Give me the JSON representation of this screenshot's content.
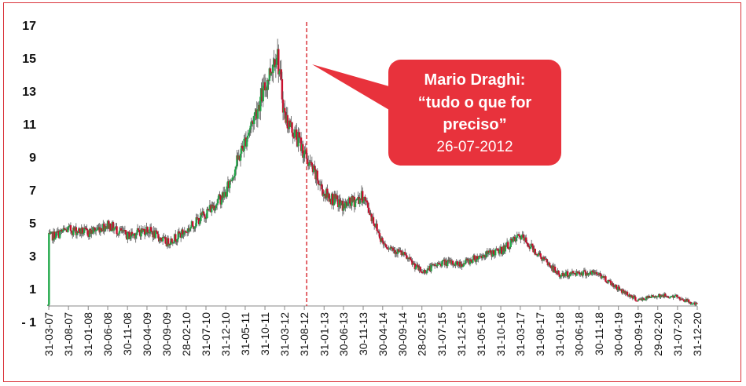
{
  "chart_data": {
    "type": "candlestick",
    "title": "",
    "xlabel": "",
    "ylabel": "",
    "ylim": [
      -1,
      17
    ],
    "y_ticks": [
      "17",
      "15",
      "13",
      "11",
      "9",
      "7",
      "5",
      "3",
      "1",
      "- 1"
    ],
    "x_ticks": [
      "31-03-07",
      "31-08-07",
      "31-01-08",
      "30-06-08",
      "30-11-08",
      "30-04-09",
      "30-09-09",
      "28-02-10",
      "31-07-10",
      "31-12-10",
      "31-05-11",
      "31-10-11",
      "31-03-12",
      "31-08-12",
      "31-01-13",
      "30-06-13",
      "30-11-13",
      "30-04-14",
      "30-09-14",
      "28-02-15",
      "31-07-15",
      "31-12-15",
      "31-05-16",
      "31-10-16",
      "31-03-17",
      "31-08-17",
      "31-01-18",
      "30-06-18",
      "30-11-18",
      "30-04-19",
      "30-09-19",
      "29-02-20",
      "31-07-20",
      "31-12-20"
    ],
    "colors": {
      "up": "#22a84a",
      "down": "#c8102e",
      "wick": "#555555",
      "marker": "#d9333a",
      "callout": "#e8323c"
    },
    "grid": false,
    "anchors": [
      [
        "31-03-07",
        4.1
      ],
      [
        "31-08-07",
        4.6
      ],
      [
        "31-01-08",
        4.4
      ],
      [
        "30-06-08",
        4.9
      ],
      [
        "30-11-08",
        4.2
      ],
      [
        "30-04-09",
        4.6
      ],
      [
        "30-09-09",
        3.8
      ],
      [
        "28-02-10",
        4.5
      ],
      [
        "31-07-10",
        5.6
      ],
      [
        "31-12-10",
        6.8
      ],
      [
        "31-05-11",
        10.0
      ],
      [
        "31-10-11",
        13.2
      ],
      [
        "31-01-12",
        15.5
      ],
      [
        "31-03-12",
        11.5
      ],
      [
        "31-07-12",
        9.8
      ],
      [
        "31-08-12",
        9.2
      ],
      [
        "31-01-13",
        6.8
      ],
      [
        "30-06-13",
        6.0
      ],
      [
        "30-11-13",
        6.6
      ],
      [
        "30-04-14",
        3.8
      ],
      [
        "30-09-14",
        3.1
      ],
      [
        "28-02-15",
        2.0
      ],
      [
        "31-07-15",
        2.6
      ],
      [
        "31-12-15",
        2.5
      ],
      [
        "31-05-16",
        3.0
      ],
      [
        "31-10-16",
        3.3
      ],
      [
        "31-03-17",
        4.2
      ],
      [
        "31-08-17",
        3.0
      ],
      [
        "31-01-18",
        1.8
      ],
      [
        "30-06-18",
        2.0
      ],
      [
        "30-11-18",
        1.9
      ],
      [
        "30-04-19",
        1.0
      ],
      [
        "30-09-19",
        0.3
      ],
      [
        "29-02-20",
        0.6
      ],
      [
        "31-07-20",
        0.5
      ],
      [
        "31-12-20",
        0.0
      ]
    ],
    "event_line": {
      "x": "31-08-12"
    },
    "annotation": {
      "line1": "Mario Draghi:",
      "line2": "“tudo o que for",
      "line3": "preciso”",
      "date": "26-07-2012"
    }
  }
}
